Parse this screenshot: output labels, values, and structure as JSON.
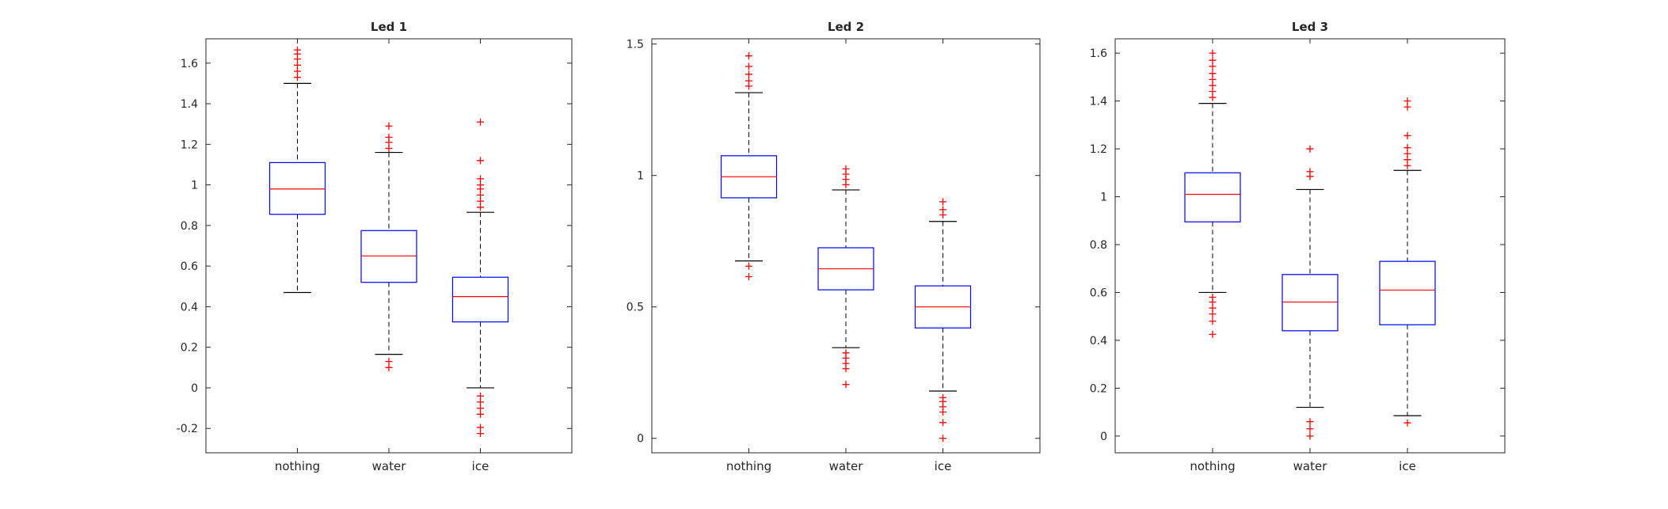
{
  "chart_data": [
    {
      "type": "boxplot",
      "title": "Led 1",
      "categories": [
        "nothing",
        "water",
        "ice"
      ],
      "ylim": [
        -0.32,
        1.72
      ],
      "yticks": [
        -0.2,
        0,
        0.2,
        0.4,
        0.6,
        0.8,
        1,
        1.2,
        1.4,
        1.6
      ],
      "ytick_labels": [
        "-0.2",
        "0",
        "0.2",
        "0.4",
        "0.6",
        "0.8",
        "1",
        "1.2",
        "1.4",
        "1.6"
      ],
      "grid": false,
      "boxes": [
        {
          "category": "nothing",
          "lower_whisker": 0.47,
          "q1": 0.855,
          "median": 0.98,
          "q3": 1.11,
          "upper_whisker": 1.5,
          "outliers": [
            1.53,
            1.56,
            1.59,
            1.62,
            1.645,
            1.665
          ]
        },
        {
          "category": "water",
          "lower_whisker": 0.165,
          "q1": 0.52,
          "median": 0.65,
          "q3": 0.775,
          "upper_whisker": 1.16,
          "outliers": [
            0.1,
            0.13,
            1.18,
            1.21,
            1.235,
            1.29
          ]
        },
        {
          "category": "ice",
          "lower_whisker": 0.0,
          "q1": 0.325,
          "median": 0.45,
          "q3": 0.545,
          "upper_whisker": 0.865,
          "outliers": [
            -0.225,
            -0.195,
            -0.13,
            -0.1,
            -0.07,
            -0.04,
            0.89,
            0.92,
            0.95,
            0.98,
            1.0,
            1.03,
            1.12,
            1.31
          ]
        }
      ]
    },
    {
      "type": "boxplot",
      "title": "Led 2",
      "categories": [
        "nothing",
        "water",
        "ice"
      ],
      "ylim": [
        -0.055,
        1.52
      ],
      "yticks": [
        0,
        0.5,
        1,
        1.5
      ],
      "ytick_labels": [
        "0",
        "0.5",
        "1",
        "1.5"
      ],
      "grid": false,
      "boxes": [
        {
          "category": "nothing",
          "lower_whisker": 0.675,
          "q1": 0.915,
          "median": 0.995,
          "q3": 1.075,
          "upper_whisker": 1.315,
          "outliers": [
            0.615,
            0.655,
            1.34,
            1.36,
            1.385,
            1.415,
            1.455
          ]
        },
        {
          "category": "water",
          "lower_whisker": 0.345,
          "q1": 0.565,
          "median": 0.645,
          "q3": 0.725,
          "upper_whisker": 0.945,
          "outliers": [
            0.205,
            0.265,
            0.285,
            0.305,
            0.325,
            0.965,
            0.985,
            1.005,
            1.025
          ]
        },
        {
          "category": "ice",
          "lower_whisker": 0.18,
          "q1": 0.42,
          "median": 0.5,
          "q3": 0.58,
          "upper_whisker": 0.825,
          "outliers": [
            0.0,
            0.06,
            0.1,
            0.12,
            0.14,
            0.155,
            0.85,
            0.87,
            0.9
          ]
        }
      ]
    },
    {
      "type": "boxplot",
      "title": "Led 3",
      "categories": [
        "nothing",
        "water",
        "ice"
      ],
      "ylim": [
        -0.07,
        1.66
      ],
      "yticks": [
        0,
        0.2,
        0.4,
        0.6,
        0.8,
        1,
        1.2,
        1.4,
        1.6
      ],
      "ytick_labels": [
        "0",
        "0.2",
        "0.4",
        "0.6",
        "0.8",
        "1",
        "1.2",
        "1.4",
        "1.6"
      ],
      "grid": false,
      "boxes": [
        {
          "category": "nothing",
          "lower_whisker": 0.6,
          "q1": 0.895,
          "median": 1.01,
          "q3": 1.1,
          "upper_whisker": 1.39,
          "outliers": [
            0.425,
            0.48,
            0.51,
            0.535,
            0.56,
            0.58,
            1.415,
            1.44,
            1.465,
            1.49,
            1.515,
            1.545,
            1.57,
            1.6
          ]
        },
        {
          "category": "water",
          "lower_whisker": 0.12,
          "q1": 0.44,
          "median": 0.56,
          "q3": 0.675,
          "upper_whisker": 1.03,
          "outliers": [
            0.0,
            0.03,
            0.06,
            1.085,
            1.105,
            1.2
          ]
        },
        {
          "category": "ice",
          "lower_whisker": 0.085,
          "q1": 0.465,
          "median": 0.61,
          "q3": 0.73,
          "upper_whisker": 1.11,
          "outliers": [
            0.055,
            1.13,
            1.155,
            1.18,
            1.205,
            1.255,
            1.375,
            1.4
          ]
        }
      ]
    }
  ],
  "colors": {
    "box": "#0000ff",
    "median": "#ff0000",
    "outlier": "#ff0000",
    "whisker": "#000000",
    "axes": "#262626"
  }
}
